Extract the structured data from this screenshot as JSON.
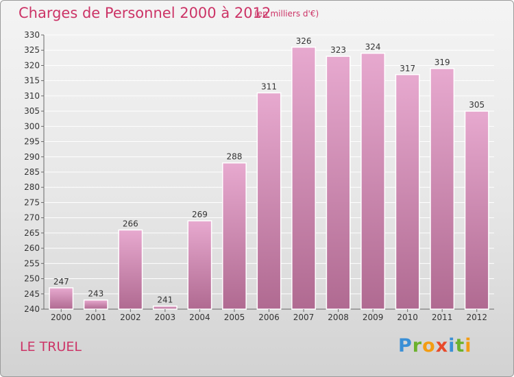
{
  "header": {
    "title": "Charges de Personnel 2000 à 2012",
    "subtitle": "(en milliers d'€)"
  },
  "footer": {
    "place": "LE TRUEL",
    "logo_text": "Proxiti"
  },
  "colors": {
    "accent": "#cc3366",
    "bar_top": "#e7a9cf",
    "bar_bottom": "#b06a91"
  },
  "chart_data": {
    "type": "bar",
    "categories": [
      "2000",
      "2001",
      "2002",
      "2003",
      "2004",
      "2005",
      "2006",
      "2007",
      "2008",
      "2009",
      "2010",
      "2011",
      "2012"
    ],
    "values": [
      247,
      243,
      266,
      241,
      269,
      288,
      311,
      326,
      323,
      324,
      317,
      319,
      305
    ],
    "ylim": [
      240,
      330
    ],
    "yticks": [
      240,
      245,
      250,
      255,
      260,
      265,
      270,
      275,
      280,
      285,
      290,
      295,
      300,
      305,
      310,
      315,
      320,
      325,
      330
    ],
    "grid": true,
    "xlabel": "",
    "ylabel": ""
  }
}
